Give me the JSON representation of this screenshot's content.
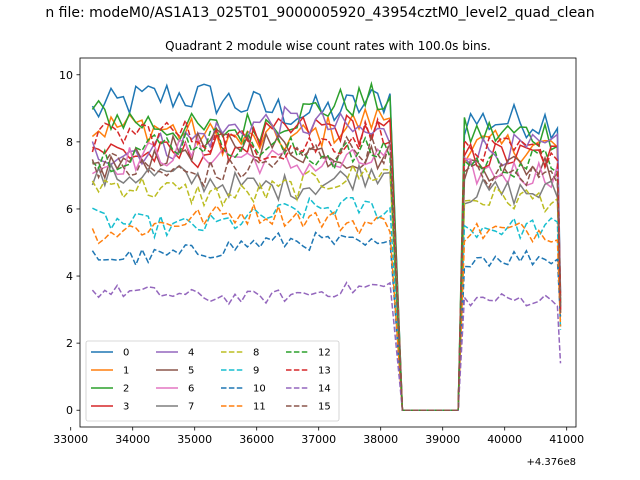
{
  "suptitle": "n file: modeM0/AS1A13_025T01_9000005920_43954cztM0_level2_quad_clean",
  "chart_data": {
    "type": "line",
    "title": "Quadrant 2 module wise count rates with 100.0s bins.",
    "xlabel": "",
    "ylabel": "",
    "x_offset_label": "+4.376e8",
    "xlim": [
      33150,
      41150
    ],
    "ylim": [
      -0.5,
      10.5
    ],
    "xticks": [
      33000,
      34000,
      35000,
      36000,
      37000,
      38000,
      39000,
      40000,
      41000
    ],
    "yticks": [
      0,
      2,
      4,
      6,
      8,
      10
    ],
    "grid": false,
    "legend_position": "lower-left",
    "gap": {
      "start": 38350,
      "end": 39250
    },
    "x_segment_1": [
      33350,
      38150
    ],
    "x_segment_2": [
      39350,
      40850
    ],
    "series": [
      {
        "name": "0",
        "color": "#1f77b4",
        "dash": "solid",
        "level": 8.9,
        "last": 3.5
      },
      {
        "name": "1",
        "color": "#ff7f0e",
        "dash": "solid",
        "level": 8.1,
        "last": 2.9
      },
      {
        "name": "2",
        "color": "#2ca02c",
        "dash": "solid",
        "level": 8.5,
        "last": 3.1
      },
      {
        "name": "3",
        "color": "#d62728",
        "dash": "solid",
        "level": 7.8,
        "last": 3.4
      },
      {
        "name": "4",
        "color": "#9467bd",
        "dash": "solid",
        "level": 8.0,
        "last": 3.0
      },
      {
        "name": "5",
        "color": "#8c564b",
        "dash": "solid",
        "level": 7.5,
        "last": 3.3
      },
      {
        "name": "6",
        "color": "#e377c2",
        "dash": "solid",
        "level": 7.3,
        "last": 3.0
      },
      {
        "name": "7",
        "color": "#7f7f7f",
        "dash": "solid",
        "level": 6.7,
        "last": 3.1
      },
      {
        "name": "8",
        "color": "#bcbd22",
        "dash": "dashed",
        "level": 6.5,
        "last": 2.8
      },
      {
        "name": "9",
        "color": "#17becf",
        "dash": "dashed",
        "level": 5.6,
        "last": 2.4
      },
      {
        "name": "10",
        "color": "#1f77b4",
        "dash": "dashed",
        "level": 4.7,
        "last": 2.7
      },
      {
        "name": "11",
        "color": "#ff7f0e",
        "dash": "dashed",
        "level": 5.5,
        "last": 2.5
      },
      {
        "name": "12",
        "color": "#2ca02c",
        "dash": "dashed",
        "level": 7.6,
        "last": 3.2
      },
      {
        "name": "13",
        "color": "#d62728",
        "dash": "dashed",
        "level": 7.9,
        "last": 3.0
      },
      {
        "name": "14",
        "color": "#9467bd",
        "dash": "dashed",
        "level": 3.4,
        "last": 1.4
      },
      {
        "name": "15",
        "color": "#8c564b",
        "dash": "dashed",
        "level": 7.2,
        "last": 2.9
      }
    ]
  }
}
